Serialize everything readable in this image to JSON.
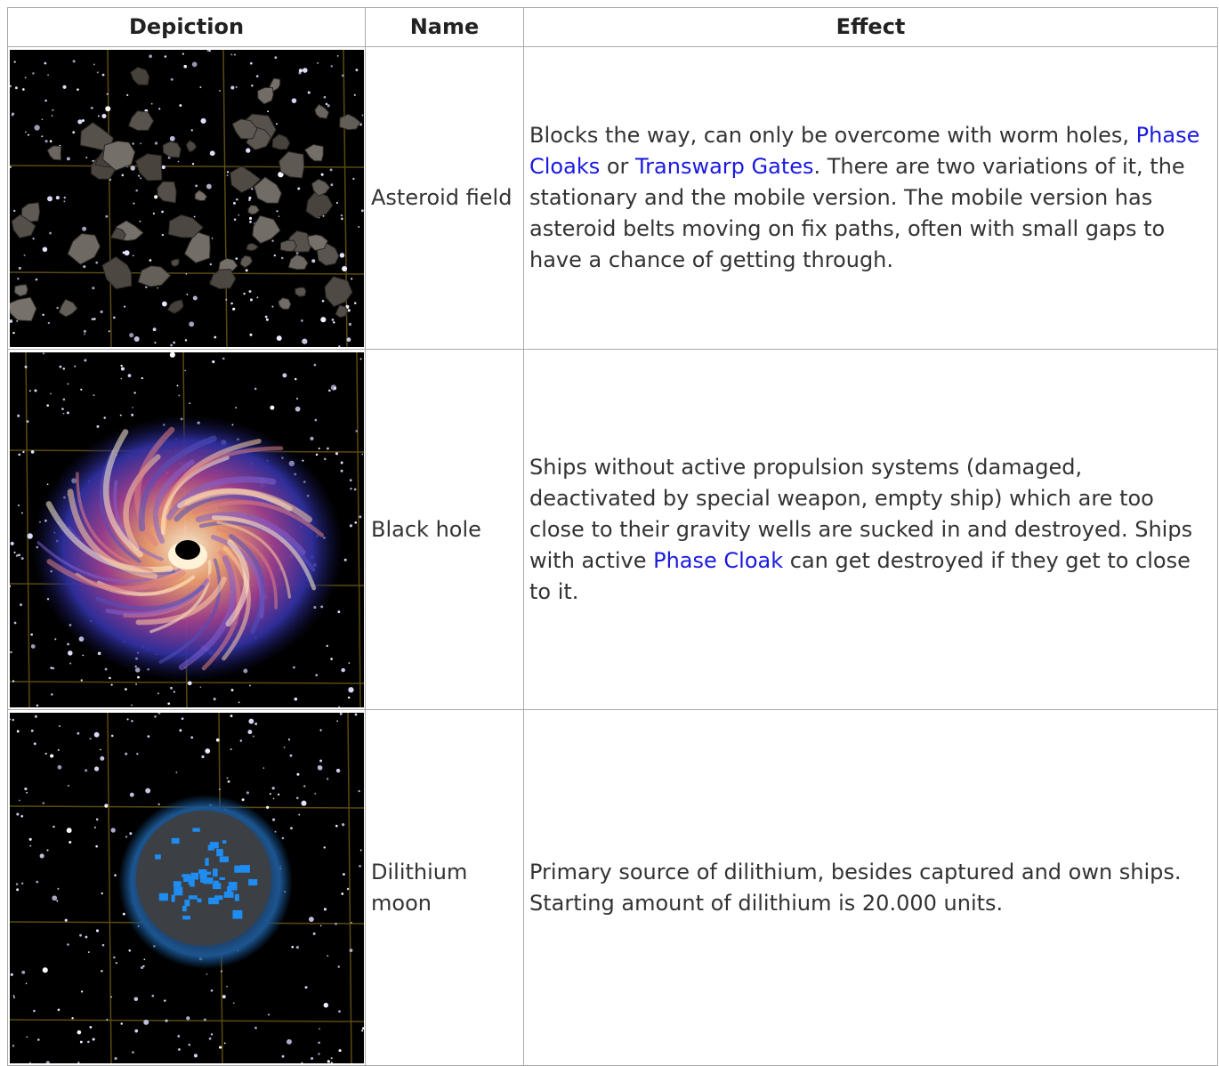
{
  "table": {
    "header": [
      "Depiction",
      "Name",
      "Effect"
    ],
    "rows": [
      {
        "name": "Asteroid field",
        "effect": [
          "Blocks the way, can only be overcome with worm holes, ",
          "Phase Cloaks",
          " or ",
          "Transwarp Gates",
          ". There are two variations of it, the stationary and the mobile version. The mobile version has asteroid belts moving on fix paths, often with small gaps to have a chance of getting through."
        ]
      },
      {
        "name": "Black hole",
        "effect": [
          "Ships without active propulsion systems (damaged, deactivated by special weapon, empty ship) which are too close to their gravity wells are sucked in and destroyed. Ships with active ",
          "Phase Cloak",
          " can get destroyed if they get to close to it."
        ]
      },
      {
        "name": "Dilithium moon",
        "effect": [
          "Primary source of dilithium, besides captured and own ships. Starting amount of dilithium is 20.000 units."
        ]
      }
    ]
  }
}
